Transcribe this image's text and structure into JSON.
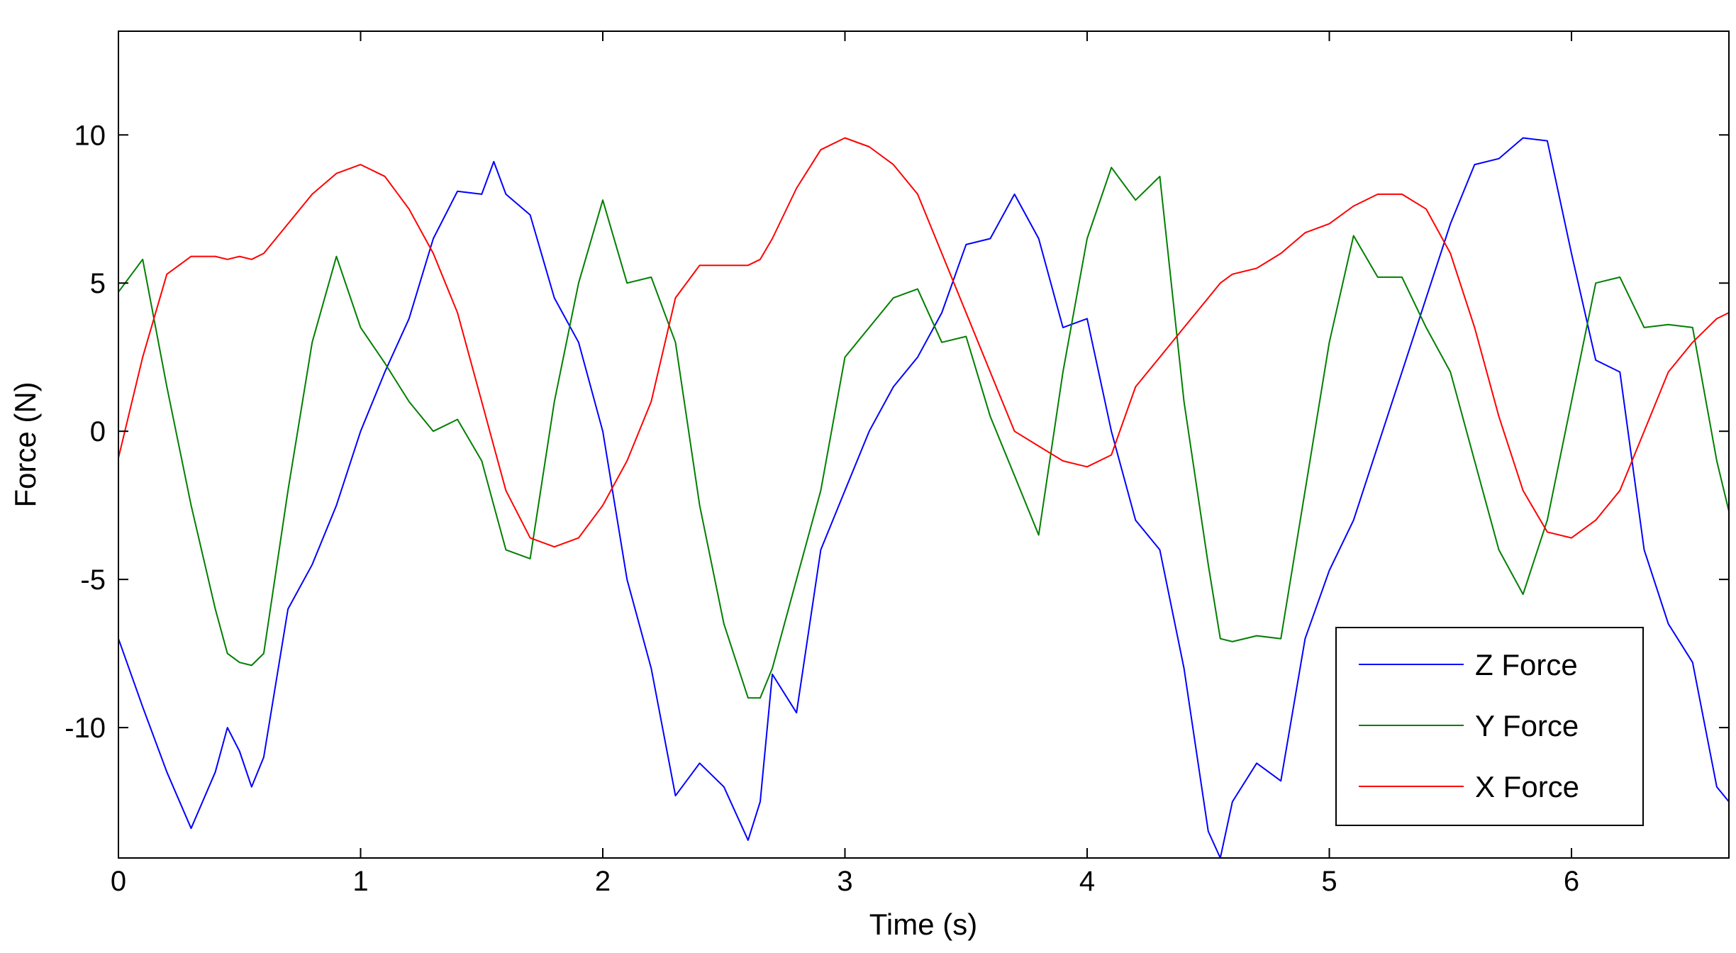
{
  "chart_data": {
    "type": "line",
    "title": "",
    "xlabel": "Time (s)",
    "ylabel": "Force (N)",
    "xlim": [
      0,
      6.65
    ],
    "ylim": [
      -14.4,
      13.5
    ],
    "xticks": [
      0,
      1,
      2,
      3,
      4,
      5,
      6
    ],
    "xtick_labels": [
      "0",
      "1",
      "2",
      "3",
      "4",
      "5",
      "6"
    ],
    "yticks": [
      -10,
      -5,
      0,
      5,
      10
    ],
    "ytick_labels": [
      "-10",
      "-5",
      "0",
      "5",
      "10"
    ],
    "grid": false,
    "legend": "bottom-right",
    "x": [
      0,
      0.1,
      0.2,
      0.3,
      0.4,
      0.45,
      0.5,
      0.55,
      0.6,
      0.7,
      0.8,
      0.9,
      1.0,
      1.1,
      1.2,
      1.3,
      1.4,
      1.5,
      1.55,
      1.6,
      1.7,
      1.8,
      1.9,
      2.0,
      2.1,
      2.2,
      2.3,
      2.4,
      2.5,
      2.6,
      2.65,
      2.7,
      2.8,
      2.9,
      3.0,
      3.1,
      3.2,
      3.3,
      3.4,
      3.5,
      3.6,
      3.7,
      3.8,
      3.9,
      4.0,
      4.1,
      4.2,
      4.3,
      4.4,
      4.5,
      4.55,
      4.6,
      4.7,
      4.8,
      4.9,
      5.0,
      5.1,
      5.2,
      5.3,
      5.4,
      5.5,
      5.6,
      5.7,
      5.8,
      5.9,
      6.0,
      6.1,
      6.2,
      6.3,
      6.4,
      6.5,
      6.6,
      6.65
    ],
    "series": [
      {
        "name": "Z Force",
        "color": "#0000ff",
        "values": [
          -7,
          -9.3,
          -11.5,
          -13.4,
          -11.5,
          -10.0,
          -10.8,
          -12.0,
          -11.0,
          -6.0,
          -4.5,
          -2.5,
          0,
          2.0,
          3.8,
          6.5,
          8.1,
          8.0,
          9.1,
          8.0,
          7.3,
          4.5,
          3.0,
          0,
          -5.0,
          -8.0,
          -12.3,
          -11.2,
          -12.0,
          -13.8,
          -12.5,
          -8.2,
          -9.5,
          -4.0,
          -2.0,
          0,
          1.5,
          2.5,
          4.0,
          6.3,
          6.5,
          8.0,
          6.5,
          3.5,
          3.8,
          0,
          -3.0,
          -4.0,
          -8.0,
          -13.5,
          -14.4,
          -12.5,
          -11.2,
          -11.8,
          -7.0,
          -4.7,
          -3.0,
          -0.5,
          2.0,
          4.5,
          7.0,
          9.0,
          9.2,
          9.9,
          9.8,
          6.0,
          2.4,
          2.0,
          -4.0,
          -6.5,
          -7.8,
          -12.0,
          -12.5
        ]
      },
      {
        "name": "Y Force",
        "color": "#007f00",
        "values": [
          4.7,
          5.8,
          1.5,
          -2.5,
          -6.0,
          -7.5,
          -7.8,
          -7.9,
          -7.5,
          -2.0,
          3.0,
          5.9,
          3.5,
          2.3,
          1.0,
          0,
          0.4,
          -1.0,
          -2.5,
          -4.0,
          -4.3,
          1.0,
          5.0,
          7.8,
          5.0,
          5.2,
          3.0,
          -2.5,
          -6.5,
          -9.0,
          -9.0,
          -8.0,
          -5.0,
          -2.0,
          2.5,
          3.5,
          4.5,
          4.8,
          3.0,
          3.2,
          0.5,
          -1.5,
          -3.5,
          2.0,
          6.5,
          8.9,
          7.8,
          8.6,
          1.0,
          -4.5,
          -7.0,
          -7.1,
          -6.9,
          -7.0,
          -2.0,
          3.0,
          6.6,
          5.2,
          5.2,
          3.5,
          2.0,
          -1.0,
          -4.0,
          -5.5,
          -3.0,
          1.0,
          5.0,
          5.2,
          3.5,
          3.6,
          3.5,
          -1.0,
          -2.7
        ]
      },
      {
        "name": "X Force",
        "color": "#ff0000",
        "values": [
          -0.9,
          2.5,
          5.3,
          5.9,
          5.9,
          5.8,
          5.9,
          5.8,
          6.0,
          7.0,
          8.0,
          8.7,
          9.0,
          8.6,
          7.5,
          6.0,
          4.0,
          1.0,
          -0.5,
          -2.0,
          -3.6,
          -3.9,
          -3.6,
          -2.5,
          -1.0,
          1.0,
          4.5,
          5.6,
          5.6,
          5.6,
          5.8,
          6.5,
          8.2,
          9.5,
          9.9,
          9.6,
          9.0,
          8.0,
          6.0,
          4.0,
          2.0,
          0,
          -0.5,
          -1.0,
          -1.2,
          -0.8,
          1.5,
          2.5,
          3.5,
          4.5,
          5.0,
          5.3,
          5.5,
          6.0,
          6.7,
          7.0,
          7.6,
          8.0,
          8.0,
          7.5,
          6.0,
          3.5,
          0.5,
          -2.0,
          -3.4,
          -3.6,
          -3.0,
          -2.0,
          0,
          2.0,
          3.0,
          3.8,
          4.0
        ]
      }
    ]
  }
}
